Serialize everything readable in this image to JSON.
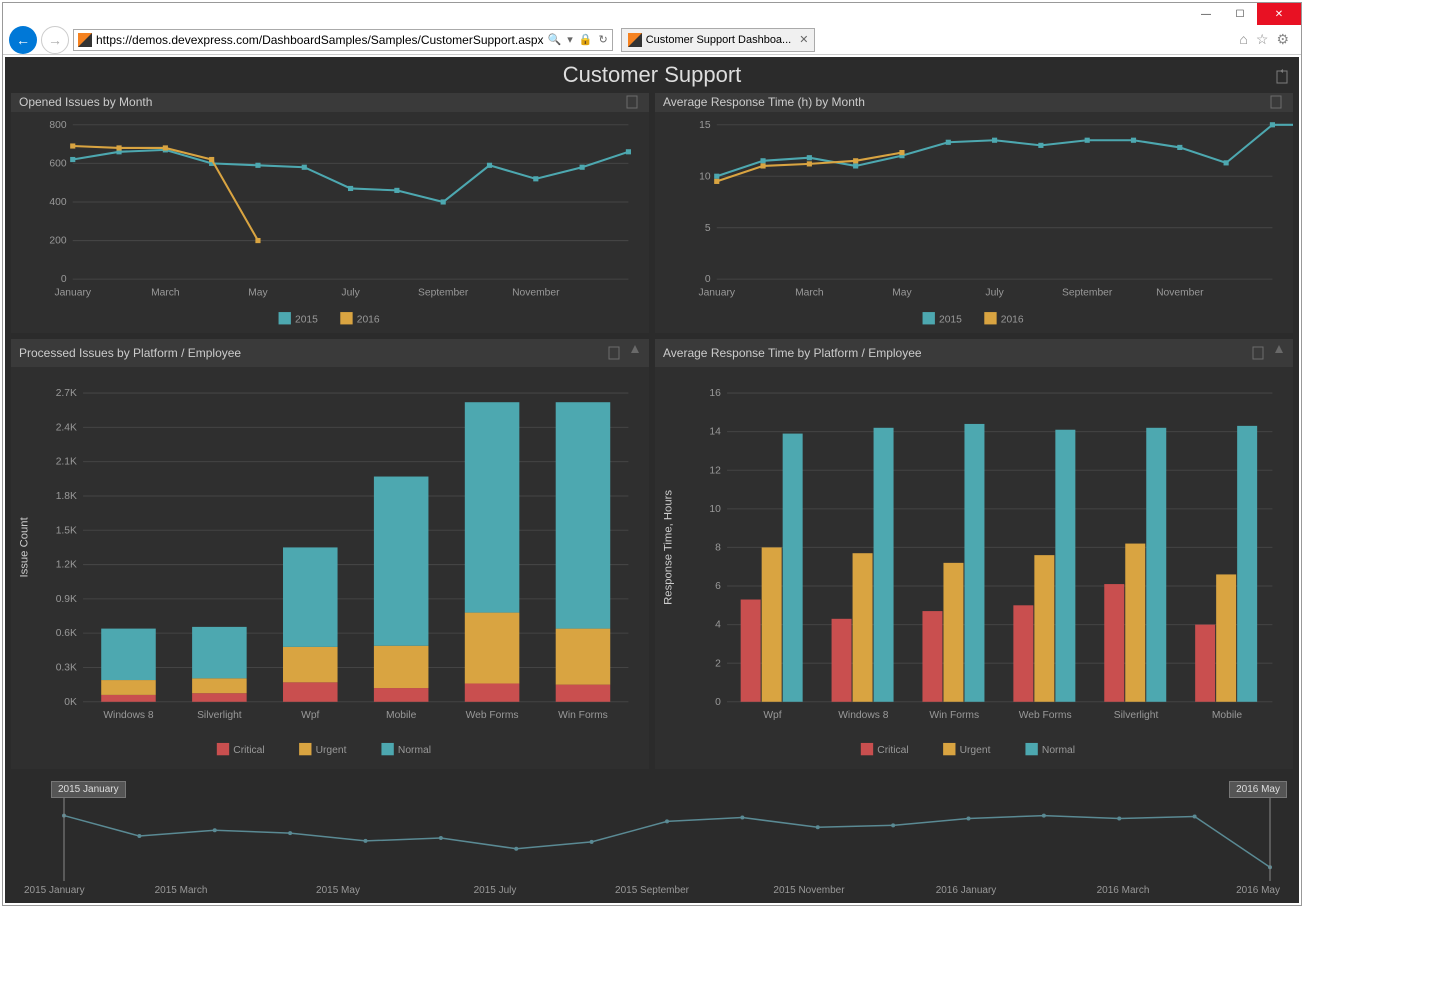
{
  "browser": {
    "url": "https://demos.devexpress.com/DashboardSamples/Samples/CustomerSupport.aspx",
    "tab_title": "Customer Support Dashboa...",
    "search_icon": "🔍",
    "lock_icon": "🔒",
    "refresh_icon": "↻"
  },
  "dashboard": {
    "title": "Customer Support",
    "colors": {
      "bg": "#2b2b2b",
      "panel": "#2f2f2f",
      "head": "#3a3a3a",
      "grid": "#444444",
      "text": "#cccccc",
      "series_2015": "#4da8b0",
      "series_2016": "#d9a441",
      "critical": "#c94f4f",
      "urgent": "#d9a441",
      "normal": "#4da8b0",
      "timeline": "#5a8a94"
    },
    "panel1": {
      "title": "Opened Issues by Month",
      "type": "line",
      "x_labels": [
        "January",
        "March",
        "May",
        "July",
        "September",
        "November"
      ],
      "ylim": [
        0,
        800
      ],
      "ytick_step": 200,
      "series": [
        {
          "name": "2015",
          "color": "#4da8b0",
          "values": [
            620,
            660,
            670,
            600,
            590,
            580,
            470,
            460,
            400,
            590,
            520,
            580,
            660
          ]
        },
        {
          "name": "2016",
          "color": "#d9a441",
          "values": [
            690,
            680,
            680,
            620,
            200
          ]
        }
      ]
    },
    "panel2": {
      "title": "Average Response Time (h) by Month",
      "type": "line",
      "x_labels": [
        "January",
        "March",
        "May",
        "July",
        "September",
        "November"
      ],
      "ylim": [
        0,
        15
      ],
      "ytick_step": 5,
      "series": [
        {
          "name": "2015",
          "color": "#4da8b0",
          "values": [
            10,
            11.5,
            11.8,
            11,
            12,
            13.3,
            13.5,
            13,
            13.5,
            13.5,
            12.8,
            11.3,
            15,
            15
          ]
        },
        {
          "name": "2016",
          "color": "#d9a441",
          "values": [
            9.5,
            11,
            11.2,
            11.5,
            12.3
          ]
        }
      ]
    },
    "panel3": {
      "title": "Processed Issues by Platform / Employee",
      "type": "stacked-bar",
      "y_title": "Issue Count",
      "ylim": [
        0,
        2700
      ],
      "yticks": [
        "0K",
        "0.3K",
        "0.6K",
        "0.9K",
        "1.2K",
        "1.5K",
        "1.8K",
        "2.1K",
        "2.4K",
        "2.7K"
      ],
      "categories": [
        "Windows 8",
        "Silverlight",
        "Wpf",
        "Mobile",
        "Web Forms",
        "Win Forms"
      ],
      "stacks": [
        {
          "name": "Critical",
          "color": "#c94f4f",
          "values": [
            60,
            75,
            170,
            120,
            160,
            150
          ]
        },
        {
          "name": "Urgent",
          "color": "#d9a441",
          "values": [
            130,
            130,
            310,
            370,
            620,
            490
          ]
        },
        {
          "name": "Normal",
          "color": "#4da8b0",
          "values": [
            450,
            450,
            870,
            1480,
            1840,
            1980
          ]
        }
      ]
    },
    "panel4": {
      "title": "Average Response Time by Platform / Employee",
      "type": "grouped-bar",
      "y_title": "Response Time, Hours",
      "ylim": [
        0,
        16
      ],
      "ytick_step": 2,
      "categories": [
        "Wpf",
        "Windows 8",
        "Win Forms",
        "Web Forms",
        "Silverlight",
        "Mobile"
      ],
      "groups": [
        {
          "name": "Critical",
          "color": "#c94f4f",
          "values": [
            5.3,
            4.3,
            4.7,
            5.0,
            6.1,
            4.0
          ]
        },
        {
          "name": "Urgent",
          "color": "#d9a441",
          "values": [
            8.0,
            7.7,
            7.2,
            7.6,
            8.2,
            6.6
          ]
        },
        {
          "name": "Normal",
          "color": "#4da8b0",
          "values": [
            13.9,
            14.2,
            14.4,
            14.1,
            14.2,
            14.3
          ]
        }
      ]
    },
    "timeline": {
      "start_label": "2015 January",
      "end_label": "2016 May",
      "x_labels": [
        "2015 January",
        "2015 March",
        "2015 May",
        "2015 July",
        "2015 September",
        "2015 November",
        "2016 January",
        "2016 March",
        "2016 May"
      ],
      "values": [
        63,
        42,
        48,
        45,
        37,
        40,
        29,
        36,
        57,
        61,
        51,
        53,
        60,
        63,
        60,
        62,
        10
      ],
      "color": "#5a8a94"
    }
  }
}
